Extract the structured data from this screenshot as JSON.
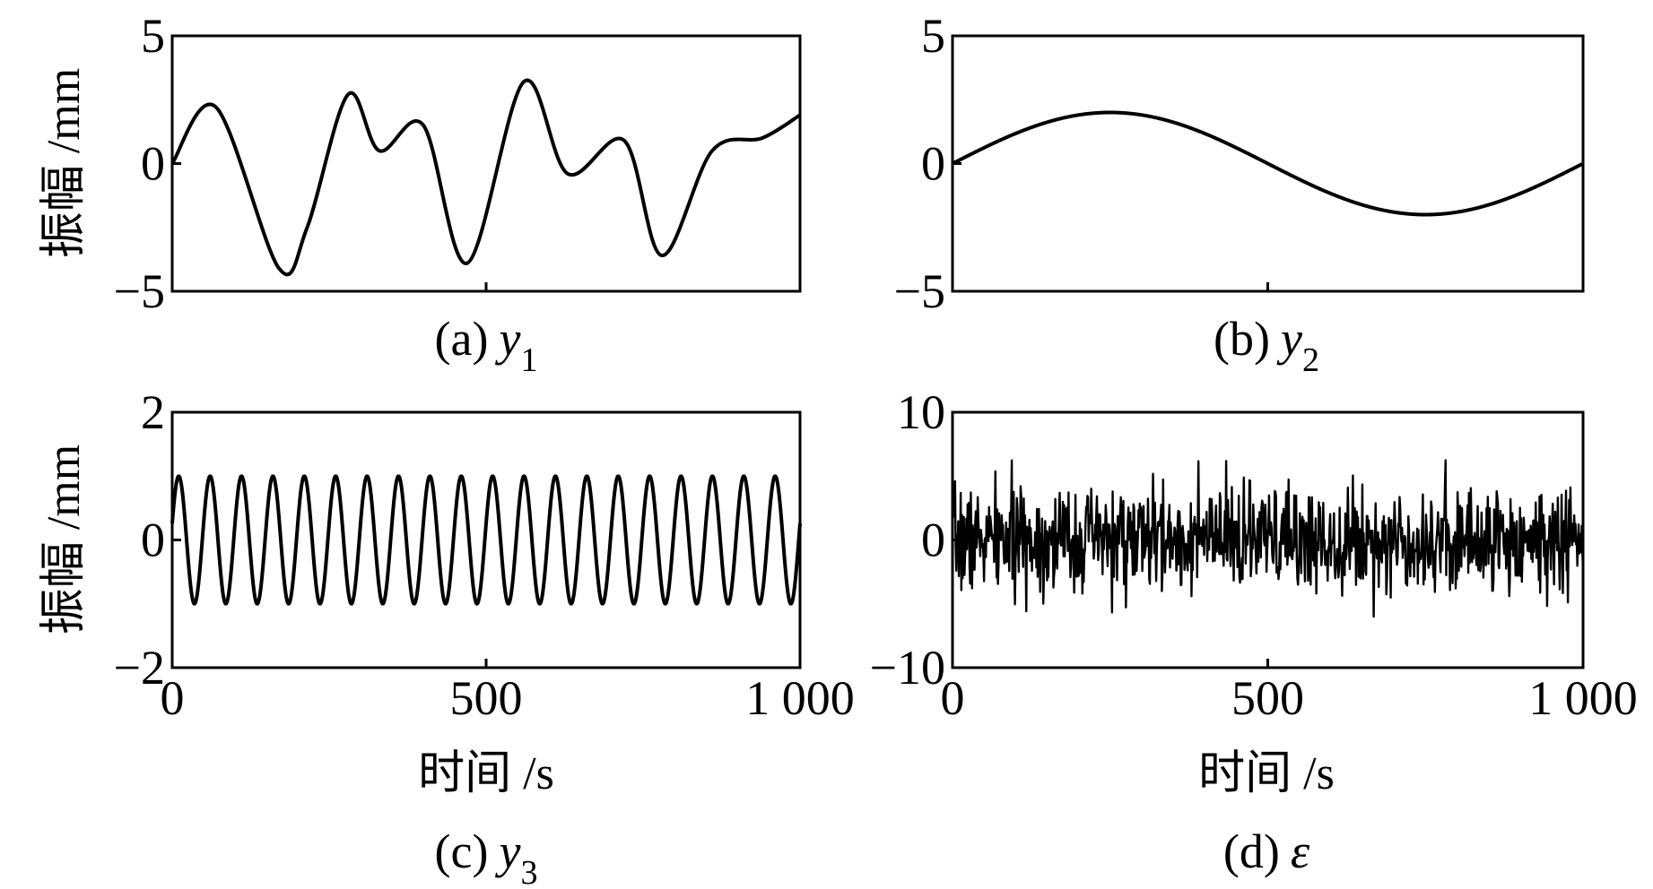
{
  "figure": {
    "y_axis_label": "振幅 /mm",
    "x_axis_label": "时间 /s",
    "line_color": "#000000",
    "background": "#ffffff"
  },
  "chart_data": [
    {
      "type": "line",
      "caption_prefix": "(a)",
      "caption_var": "y",
      "caption_sub": "1",
      "xlim": [
        0,
        1000
      ],
      "ylim": [
        -5,
        5
      ],
      "yticks": [
        "−5",
        "0",
        "5"
      ],
      "xticks": [],
      "x": [
        0,
        70,
        170,
        215,
        280,
        330,
        400,
        470,
        560,
        630,
        720,
        780,
        860,
        940,
        1000
      ],
      "y": [
        0,
        2.2,
        -4.1,
        -2.5,
        2.7,
        0.5,
        1.5,
        -3.9,
        3.2,
        -0.4,
        0.9,
        -3.6,
        0.5,
        1.0,
        1.9
      ],
      "smooth": true,
      "grid": false
    },
    {
      "type": "line",
      "caption_prefix": "(b)",
      "caption_var": "y",
      "caption_sub": "2",
      "xlim": [
        0,
        1000
      ],
      "ylim": [
        -5,
        5
      ],
      "yticks": [
        "−5",
        "0",
        "5"
      ],
      "xticks": [],
      "function": "sine",
      "amplitude": 2,
      "period": 1000,
      "phase_deg": 0,
      "grid": false
    },
    {
      "type": "line",
      "caption_prefix": "(c)",
      "caption_var": "y",
      "caption_sub": "3",
      "xlim": [
        0,
        1000
      ],
      "ylim": [
        -2,
        2
      ],
      "yticks": [
        "−2",
        "0",
        "2"
      ],
      "xticks": [
        "0",
        "500",
        "1 000"
      ],
      "function": "sine",
      "amplitude": 1,
      "period": 50,
      "phase_deg": 15,
      "show_x_title": true,
      "grid": false
    },
    {
      "type": "line",
      "caption_prefix": "(d)",
      "caption_var": "ε",
      "caption_sub": "",
      "xlim": [
        0,
        1000
      ],
      "ylim": [
        -10,
        10
      ],
      "yticks": [
        "−10",
        "0",
        "10"
      ],
      "xticks": [
        "0",
        "500",
        "1 000"
      ],
      "function": "noise",
      "noise_std": 2,
      "noise_points": 1000,
      "noise_seed": 7,
      "show_x_title": true,
      "grid": false
    }
  ]
}
